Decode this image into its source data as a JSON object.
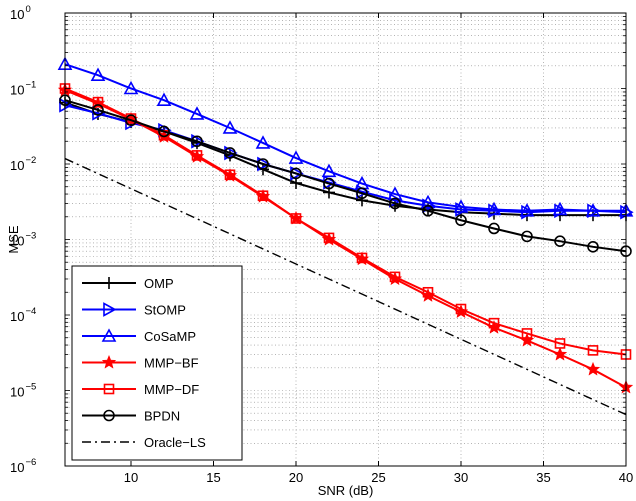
{
  "chart_data": {
    "type": "line",
    "xlabel": "SNR (dB)",
    "ylabel": "MSE",
    "x_scale": "linear",
    "y_scale": "log",
    "xlim": [
      6,
      40
    ],
    "ylim": [
      1e-06,
      1
    ],
    "x_ticks": [
      10,
      15,
      20,
      25,
      30,
      35,
      40
    ],
    "x_tick_labels": [
      "10",
      "15",
      "20",
      "25",
      "30",
      "35",
      "40"
    ],
    "y_ticks": [
      {
        "value": 1e-06,
        "base": "10",
        "exp": "−6"
      },
      {
        "value": 1e-05,
        "base": "10",
        "exp": "−5"
      },
      {
        "value": 0.0001,
        "base": "10",
        "exp": "−4"
      },
      {
        "value": 0.001,
        "base": "10",
        "exp": "−3"
      },
      {
        "value": 0.01,
        "base": "10",
        "exp": "−2"
      },
      {
        "value": 0.1,
        "base": "10",
        "exp": "−1"
      },
      {
        "value": 1,
        "base": "10",
        "exp": "0"
      }
    ],
    "grid": true,
    "legend_position": "bottom-left",
    "series": [
      {
        "name": "OMP",
        "color": "#000000",
        "marker": "plus",
        "dash": "solid",
        "x": [
          6,
          8,
          10,
          12,
          14,
          16,
          18,
          20,
          22,
          24,
          26,
          28,
          30,
          32,
          34,
          36,
          38,
          40
        ],
        "y": [
          0.065,
          0.046,
          0.036,
          0.027,
          0.019,
          0.013,
          0.0085,
          0.0056,
          0.0042,
          0.0033,
          0.0028,
          0.0025,
          0.0023,
          0.0022,
          0.0021,
          0.0021,
          0.0021,
          0.0021
        ]
      },
      {
        "name": "StOMP",
        "color": "#0000ff",
        "marker": "triangle-right",
        "dash": "solid",
        "x": [
          6,
          8,
          10,
          12,
          14,
          16,
          18,
          20,
          22,
          24,
          26,
          28,
          30,
          32,
          34,
          36,
          38,
          40
        ],
        "y": [
          0.06,
          0.047,
          0.035,
          0.028,
          0.02,
          0.014,
          0.01,
          0.0075,
          0.0057,
          0.0043,
          0.0033,
          0.0028,
          0.0025,
          0.0024,
          0.0023,
          0.0024,
          0.0024,
          0.0023
        ]
      },
      {
        "name": "CoSaMP",
        "color": "#0000ff",
        "marker": "triangle-up",
        "dash": "solid",
        "x": [
          6,
          8,
          10,
          12,
          14,
          16,
          18,
          20,
          22,
          24,
          26,
          28,
          30,
          32,
          34,
          36,
          38,
          40
        ],
        "y": [
          0.21,
          0.15,
          0.1,
          0.07,
          0.046,
          0.03,
          0.019,
          0.012,
          0.008,
          0.0055,
          0.004,
          0.0031,
          0.0027,
          0.0025,
          0.0024,
          0.0025,
          0.0024,
          0.0024
        ]
      },
      {
        "name": "MMP−BF",
        "color": "#ff0000",
        "marker": "star",
        "dash": "solid",
        "x": [
          6,
          8,
          10,
          12,
          14,
          16,
          18,
          20,
          22,
          24,
          26,
          28,
          30,
          32,
          34,
          36,
          38,
          40
        ],
        "y": [
          0.095,
          0.063,
          0.039,
          0.023,
          0.0125,
          0.007,
          0.0037,
          0.0019,
          0.001,
          0.00055,
          0.0003,
          0.00018,
          0.00011,
          6.8e-05,
          4.6e-05,
          3e-05,
          1.9e-05,
          1.1e-05
        ]
      },
      {
        "name": "MMP−DF",
        "color": "#ff0000",
        "marker": "square",
        "dash": "solid",
        "x": [
          6,
          8,
          10,
          12,
          14,
          16,
          18,
          20,
          22,
          24,
          26,
          28,
          30,
          32,
          34,
          36,
          38,
          40
        ],
        "y": [
          0.1,
          0.066,
          0.04,
          0.024,
          0.013,
          0.0072,
          0.0038,
          0.0019,
          0.00105,
          0.00057,
          0.00032,
          0.0002,
          0.00012,
          7.8e-05,
          5.7e-05,
          4.2e-05,
          3.4e-05,
          3e-05
        ]
      },
      {
        "name": "BPDN",
        "color": "#000000",
        "marker": "circle",
        "dash": "solid",
        "x": [
          6,
          8,
          10,
          12,
          14,
          16,
          18,
          20,
          22,
          24,
          26,
          28,
          30,
          32,
          34,
          36,
          38,
          40
        ],
        "y": [
          0.07,
          0.052,
          0.038,
          0.027,
          0.02,
          0.014,
          0.01,
          0.0075,
          0.0055,
          0.0041,
          0.003,
          0.0024,
          0.0018,
          0.0014,
          0.0011,
          0.00095,
          0.0008,
          0.0007
        ]
      },
      {
        "name": "Oracle−LS",
        "color": "#000000",
        "marker": "none",
        "dash": "dashdot",
        "x": [
          6,
          40
        ],
        "y": [
          0.0118,
          4.8e-06
        ]
      }
    ]
  }
}
